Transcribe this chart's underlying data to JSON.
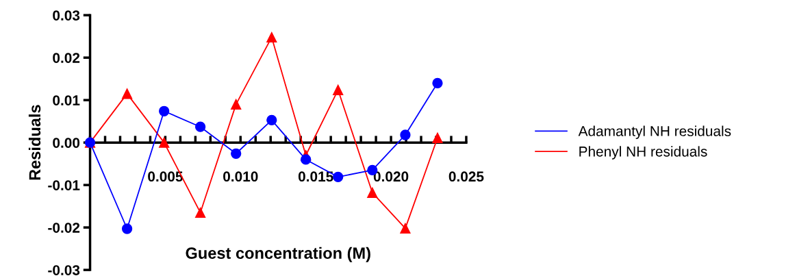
{
  "chart_data": {
    "type": "line",
    "xlabel": "Guest concentration (M)",
    "ylabel": "Residuals",
    "x": [
      0,
      0.00246,
      0.00492,
      0.00733,
      0.0097,
      0.01207,
      0.01434,
      0.01648,
      0.01876,
      0.02095,
      0.02309
    ],
    "series": [
      {
        "name": "Adamantyl NH residuals",
        "color": "#0000ff",
        "marker": "circle",
        "values": [
          0,
          -0.0203,
          0.0074,
          0.0037,
          -0.0026,
          0.0053,
          -0.004,
          -0.0081,
          -0.0065,
          0.0018,
          0.014
        ]
      },
      {
        "name": "Phenyl NH residuals",
        "color": "#ff0000",
        "marker": "triangle",
        "values": [
          0,
          0.0115,
          0,
          -0.0165,
          0.009,
          0.0248,
          -0.003,
          0.0124,
          -0.0118,
          -0.0202,
          0.0011
        ]
      }
    ],
    "xlim": [
      0,
      0.025
    ],
    "ylim": [
      -0.03,
      0.03
    ],
    "xticks": [
      {
        "value": 0,
        "label": null
      },
      {
        "value": 0.001,
        "label": null
      },
      {
        "value": 0.002,
        "label": null
      },
      {
        "value": 0.003,
        "label": null
      },
      {
        "value": 0.004,
        "label": null
      },
      {
        "value": 0.005,
        "label": "0.005"
      },
      {
        "value": 0.006,
        "label": null
      },
      {
        "value": 0.007,
        "label": null
      },
      {
        "value": 0.008,
        "label": null
      },
      {
        "value": 0.009,
        "label": null
      },
      {
        "value": 0.01,
        "label": "0.010"
      },
      {
        "value": 0.011,
        "label": null
      },
      {
        "value": 0.012,
        "label": null
      },
      {
        "value": 0.013,
        "label": null
      },
      {
        "value": 0.014,
        "label": null
      },
      {
        "value": 0.015,
        "label": "0.015"
      },
      {
        "value": 0.016,
        "label": null
      },
      {
        "value": 0.017,
        "label": null
      },
      {
        "value": 0.018,
        "label": null
      },
      {
        "value": 0.019,
        "label": null
      },
      {
        "value": 0.02,
        "label": "0.020"
      },
      {
        "value": 0.021,
        "label": null
      },
      {
        "value": 0.022,
        "label": null
      },
      {
        "value": 0.023,
        "label": null
      },
      {
        "value": 0.024,
        "label": null
      },
      {
        "value": 0.025,
        "label": "0.025"
      }
    ],
    "yticks": [
      {
        "value": -0.03,
        "label": "-0.03"
      },
      {
        "value": -0.02,
        "label": "-0.02"
      },
      {
        "value": -0.01,
        "label": "-0.01"
      },
      {
        "value": 0,
        "label": "0.00"
      },
      {
        "value": 0.01,
        "label": "0.01"
      },
      {
        "value": 0.02,
        "label": "0.02"
      },
      {
        "value": 0.03,
        "label": "0.03"
      }
    ],
    "legend": "right",
    "grid": false,
    "line_style": "solid"
  }
}
